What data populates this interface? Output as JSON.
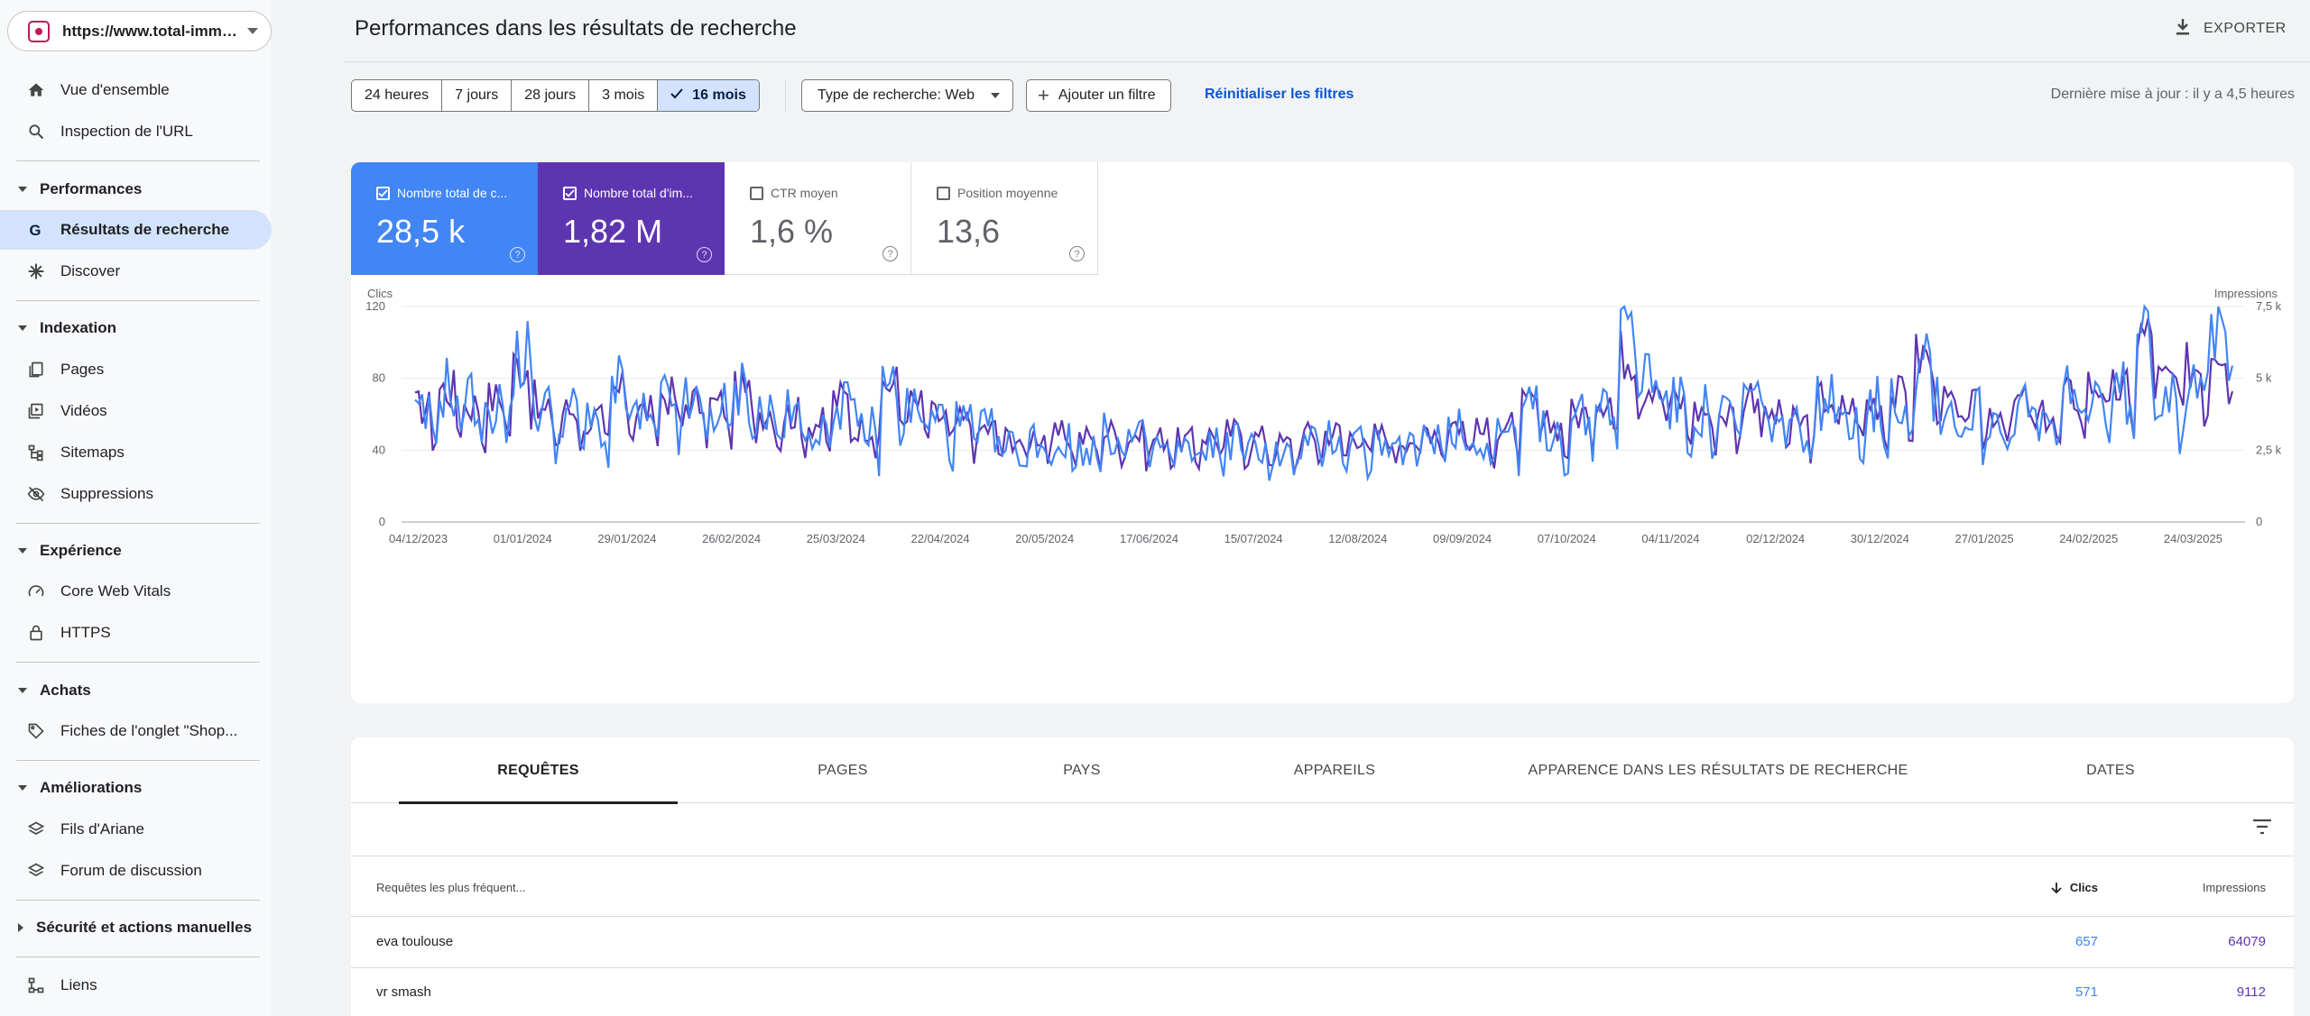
{
  "property": {
    "url": "https://www.total-imme..."
  },
  "sidebar": {
    "items": [
      {
        "label": "Vue d'ensemble",
        "icon": "home-icon"
      },
      {
        "label": "Inspection de l'URL",
        "icon": "search-icon"
      },
      {
        "section": "Performances"
      },
      {
        "label": "Résultats de recherche",
        "icon": "google-g-icon",
        "active": true
      },
      {
        "label": "Discover",
        "icon": "asterisk-icon"
      },
      {
        "section": "Indexation"
      },
      {
        "label": "Pages",
        "icon": "pages-icon"
      },
      {
        "label": "Vidéos",
        "icon": "video-icon"
      },
      {
        "label": "Sitemaps",
        "icon": "sitemap-icon"
      },
      {
        "label": "Suppressions",
        "icon": "eye-off-icon"
      },
      {
        "section": "Expérience"
      },
      {
        "label": "Core Web Vitals",
        "icon": "gauge-icon"
      },
      {
        "label": "HTTPS",
        "icon": "lock-icon"
      },
      {
        "section": "Achats"
      },
      {
        "label": "Fiches de l'onglet \"Shop...",
        "icon": "tag-icon"
      },
      {
        "section": "Améliorations"
      },
      {
        "label": "Fils d'Ariane",
        "icon": "layers-icon"
      },
      {
        "label": "Forum de discussion",
        "icon": "layers-icon"
      },
      {
        "section": "Sécurité et actions manuelles",
        "collapsed": true
      },
      {
        "label": "Liens",
        "icon": "links-icon"
      }
    ]
  },
  "header": {
    "title": "Performances dans les résultats de recherche",
    "export_label": "EXPORTER"
  },
  "filters": {
    "ranges": [
      "24 heures",
      "7 jours",
      "28 jours",
      "3 mois",
      "16 mois"
    ],
    "selected_range": "16 mois",
    "search_type": "Type de recherche: Web",
    "add_filter": "Ajouter un filtre",
    "reset": "Réinitialiser les filtres",
    "last_update": "Dernière mise à jour : il y a 4,5 heures"
  },
  "metrics": {
    "clicks": {
      "label": "Nombre total de c...",
      "value": "28,5 k",
      "checked": true,
      "color": "#4285f4"
    },
    "impressions": {
      "label": "Nombre total d'im...",
      "value": "1,82 M",
      "checked": true,
      "color": "#5e35b1"
    },
    "ctr": {
      "label": "CTR moyen",
      "value": "1,6 %",
      "checked": false
    },
    "position": {
      "label": "Position moyenne",
      "value": "13,6",
      "checked": false
    }
  },
  "chart_data": {
    "type": "line",
    "xlabel": "",
    "ylabel_left": "Clics",
    "ylabel_right": "Impressions",
    "ylim_left": [
      0,
      120
    ],
    "ylim_right": [
      0,
      7500
    ],
    "yticks_left": [
      "0",
      "40",
      "80",
      "120"
    ],
    "yticks_right": [
      "0",
      "2,5 k",
      "5 k",
      "7,5 k"
    ],
    "x_tick_labels": [
      "04/12/2023",
      "01/01/2024",
      "29/01/2024",
      "26/02/2024",
      "25/03/2024",
      "22/04/2024",
      "20/05/2024",
      "17/06/2024",
      "15/07/2024",
      "12/08/2024",
      "09/09/2024",
      "07/10/2024",
      "04/11/2024",
      "02/12/2024",
      "30/12/2024",
      "27/01/2025",
      "24/02/2025",
      "24/03/2025"
    ],
    "x_range": [
      "2023-12-04",
      "2025-03-31"
    ],
    "grid": true,
    "series": [
      {
        "name": "Clics",
        "axis": "left",
        "color": "#4285f4",
        "weekly_avg": [
          55,
          72,
          65,
          62,
          88,
          60,
          58,
          52,
          70,
          55,
          64,
          62,
          60,
          70,
          58,
          56,
          52,
          66,
          50,
          72,
          60,
          55,
          52,
          48,
          40,
          44,
          42,
          40,
          46,
          44,
          40,
          38,
          42,
          44,
          40,
          36,
          42,
          46,
          44,
          42,
          40,
          48,
          52,
          44,
          50,
          60,
          48,
          56,
          66,
          100,
          80,
          62,
          58,
          56,
          68,
          54,
          50,
          64,
          58,
          62,
          66,
          92,
          60,
          58,
          56,
          62,
          52,
          66,
          70,
          68,
          96,
          72,
          80,
          98
        ]
      },
      {
        "name": "Impressions",
        "axis": "right",
        "color": "#5e35b1",
        "weekly_avg": [
          3800,
          4400,
          3900,
          4100,
          5200,
          3600,
          3700,
          3400,
          4300,
          3700,
          4200,
          4000,
          3900,
          4300,
          3700,
          3600,
          3300,
          4100,
          3200,
          4600,
          3900,
          3500,
          3300,
          3100,
          2800,
          2900,
          2900,
          2800,
          3000,
          2900,
          2800,
          2700,
          2900,
          3000,
          2800,
          2600,
          2900,
          3000,
          2900,
          2900,
          2800,
          3100,
          3300,
          3000,
          3200,
          3800,
          3200,
          3600,
          4200,
          5600,
          4700,
          4000,
          3700,
          3600,
          4300,
          3500,
          3300,
          4100,
          3800,
          4000,
          4200,
          5500,
          3900,
          3800,
          3700,
          4000,
          3500,
          4200,
          4600,
          4400,
          6200,
          4700,
          5200,
          6000
        ]
      }
    ]
  },
  "table": {
    "tabs": [
      "REQUÊTES",
      "PAGES",
      "PAYS",
      "APPAREILS",
      "APPARENCE DANS LES RÉSULTATS DE RECHERCHE",
      "DATES"
    ],
    "active_tab": "REQUÊTES",
    "columns": [
      "Requêtes les plus fréquent...",
      "Clics",
      "Impressions"
    ],
    "rows": [
      {
        "query": "eva toulouse",
        "clicks": "657",
        "impressions": "64079"
      },
      {
        "query": "vr smash",
        "clicks": "571",
        "impressions": "9112"
      }
    ]
  }
}
